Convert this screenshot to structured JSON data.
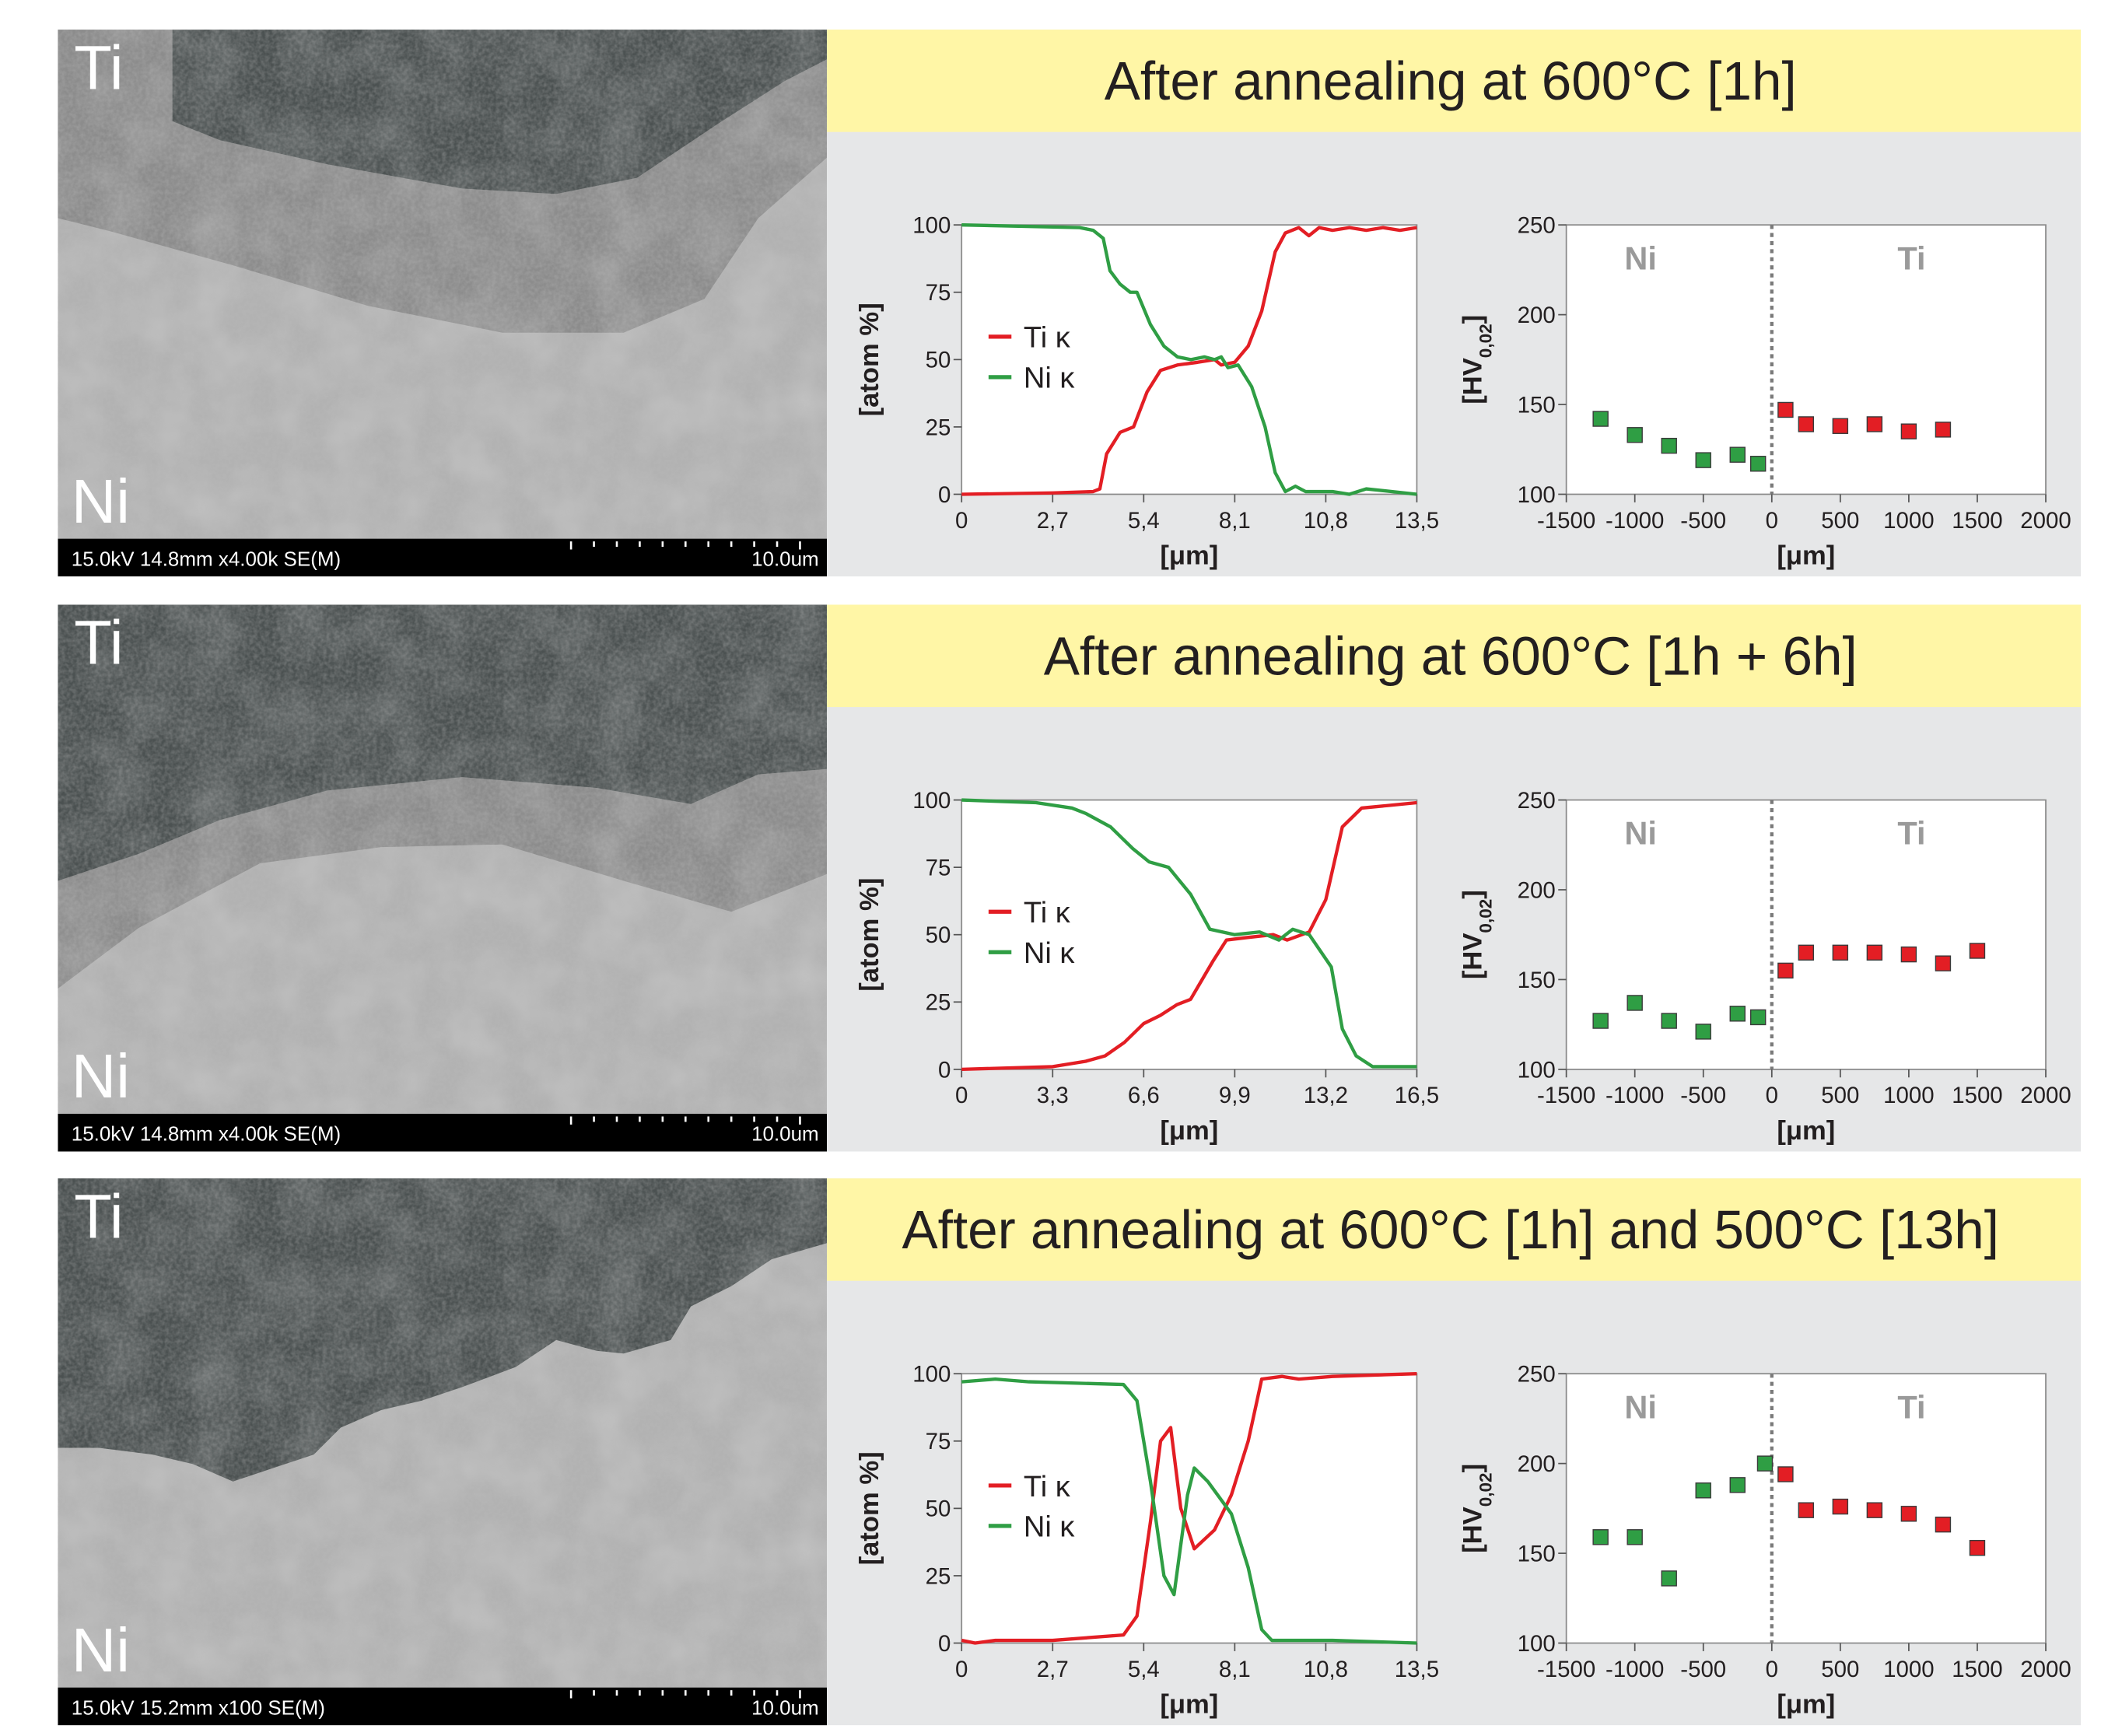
{
  "panels": [
    {
      "title": "After annealing at 600°C [1h]",
      "sem": {
        "top_label": "Ti",
        "bottom_label": "Ni",
        "info": "15.0kV 14.8mm x4.00k SE(M)",
        "scale": "10.0um"
      }
    },
    {
      "title": "After annealing at 600°C [1h + 6h]",
      "sem": {
        "top_label": "Ti",
        "bottom_label": "Ni",
        "info": "15.0kV 14.8mm x4.00k SE(M)",
        "scale": "10.0um"
      }
    },
    {
      "title": "After annealing at 600°C [1h] and 500°C [13h]",
      "sem": {
        "top_label": "Ti",
        "bottom_label": "Ni",
        "info": "15.0kV 15.2mm x100 SE(M)",
        "scale": "10.0um"
      }
    }
  ],
  "chart_data": [
    {
      "type": "line",
      "xlabel": "[μm]",
      "ylabel": "[atom %]",
      "xlim": [
        0,
        13.5
      ],
      "xticks": [
        0,
        {
          "value": 2.7,
          "label": "2,7"
        },
        {
          "value": 5.4,
          "label": "5,4"
        },
        {
          "value": 8.1,
          "label": "8,1"
        },
        {
          "value": 10.8,
          "label": "10,8"
        },
        {
          "value": 13.5,
          "label": "13,5"
        }
      ],
      "ylim": [
        0,
        100
      ],
      "yticks": [
        0,
        25,
        50,
        75,
        100
      ],
      "legend": "left",
      "series": [
        {
          "name": "Ti κ",
          "color": "#e31e24",
          "x": [
            0,
            2.7,
            3.9,
            4.1,
            4.3,
            4.7,
            5.1,
            5.5,
            5.9,
            6.4,
            7,
            7.5,
            7.7,
            8.1,
            8.5,
            8.9,
            9.3,
            9.6,
            10,
            10.3,
            10.6,
            11,
            11.5,
            12,
            12.5,
            13,
            13.5
          ],
          "values": [
            0,
            0.5,
            1,
            2,
            15,
            23,
            25,
            38,
            46,
            48,
            49,
            50,
            48,
            49,
            55,
            68,
            90,
            97,
            99,
            96,
            99,
            98,
            99,
            98,
            99,
            98,
            99
          ]
        },
        {
          "name": "Ni κ",
          "color": "#2f9e44",
          "x": [
            0,
            3.5,
            3.9,
            4.2,
            4.4,
            4.7,
            5,
            5.2,
            5.6,
            6,
            6.4,
            6.8,
            7.2,
            7.5,
            7.7,
            7.9,
            8.2,
            8.6,
            9,
            9.3,
            9.6,
            9.9,
            10.2,
            11,
            11.5,
            12,
            13.5
          ],
          "values": [
            100,
            99,
            98,
            95,
            83,
            78,
            75,
            75,
            63,
            55,
            51,
            50,
            51,
            50,
            51,
            47,
            48,
            40,
            25,
            8,
            1,
            3,
            1,
            1,
            0,
            2,
            0
          ]
        }
      ]
    },
    {
      "type": "scatter",
      "xlabel": "[μm]",
      "ylabel": [
        "[HV",
        "0,02",
        "]"
      ],
      "xlim": [
        -1500,
        2000
      ],
      "xticks": [
        -1500,
        -1000,
        -500,
        0,
        500,
        1000,
        1500,
        2000
      ],
      "ylim": [
        100,
        250
      ],
      "yticks": [
        100,
        150,
        200,
        250
      ],
      "reference_line_x": 0,
      "series": [
        {
          "name": "Ni",
          "color": "#2f9e44",
          "x": [
            -1250,
            -1000,
            -750,
            -500,
            -250,
            -100
          ],
          "values": [
            142,
            133,
            127,
            119,
            122,
            117
          ]
        },
        {
          "name": "Ti",
          "color": "#e31e24",
          "x": [
            100,
            250,
            500,
            750,
            1000,
            1250
          ],
          "values": [
            147,
            139,
            138,
            139,
            135,
            136
          ]
        }
      ]
    },
    {
      "type": "line",
      "xlabel": "[μm]",
      "ylabel": "[atom %]",
      "xlim": [
        0,
        16.5
      ],
      "xticks": [
        0,
        {
          "value": 3.3,
          "label": "3,3"
        },
        {
          "value": 6.6,
          "label": "6,6"
        },
        {
          "value": 9.9,
          "label": "9,9"
        },
        {
          "value": 13.2,
          "label": "13,2"
        },
        {
          "value": 16.5,
          "label": "16,5"
        }
      ],
      "ylim": [
        0,
        100
      ],
      "yticks": [
        0,
        25,
        50,
        75,
        100
      ],
      "legend": "left",
      "series": [
        {
          "name": "Ti κ",
          "color": "#e31e24",
          "x": [
            0,
            3.3,
            4.5,
            5.2,
            5.9,
            6.6,
            7.2,
            7.8,
            8.3,
            9.1,
            9.6,
            10.4,
            11.3,
            11.8,
            12.6,
            13.2,
            13.8,
            14.5,
            15.5,
            16.5
          ],
          "values": [
            0,
            1,
            3,
            5,
            10,
            17,
            20,
            24,
            26,
            40,
            48,
            49,
            50,
            48,
            51,
            63,
            90,
            97,
            98,
            99
          ]
        },
        {
          "name": "Ni κ",
          "color": "#2f9e44",
          "x": [
            0,
            2.7,
            4,
            4.5,
            5.4,
            6.2,
            6.8,
            7.5,
            8.3,
            9,
            9.9,
            10.8,
            11.5,
            12,
            12.6,
            13.4,
            13.8,
            14.3,
            14.9,
            16.5
          ],
          "values": [
            100,
            99,
            97,
            95,
            90,
            82,
            77,
            75,
            65,
            52,
            50,
            51,
            48,
            52,
            50,
            38,
            15,
            5,
            1,
            1
          ]
        }
      ]
    },
    {
      "type": "scatter",
      "xlabel": "[μm]",
      "ylabel": [
        "[HV",
        "0,02",
        "]"
      ],
      "xlim": [
        -1500,
        2000
      ],
      "xticks": [
        -1500,
        -1000,
        -500,
        0,
        500,
        1000,
        1500,
        2000
      ],
      "ylim": [
        100,
        250
      ],
      "yticks": [
        100,
        150,
        200,
        250
      ],
      "reference_line_x": 0,
      "series": [
        {
          "name": "Ni",
          "color": "#2f9e44",
          "x": [
            -1250,
            -1000,
            -750,
            -500,
            -250,
            -100
          ],
          "values": [
            127,
            137,
            127,
            121,
            131,
            129
          ]
        },
        {
          "name": "Ti",
          "color": "#e31e24",
          "x": [
            100,
            250,
            500,
            750,
            1000,
            1250,
            1500
          ],
          "values": [
            155,
            165,
            165,
            165,
            164,
            159,
            166
          ]
        }
      ]
    },
    {
      "type": "line",
      "xlabel": "[μm]",
      "ylabel": "[atom %]",
      "xlim": [
        0,
        13.5
      ],
      "xticks": [
        0,
        {
          "value": 2.7,
          "label": "2,7"
        },
        {
          "value": 5.4,
          "label": "5,4"
        },
        {
          "value": 8.1,
          "label": "8,1"
        },
        {
          "value": 10.8,
          "label": "10,8"
        },
        {
          "value": 13.5,
          "label": "13,5"
        }
      ],
      "ylim": [
        0,
        100
      ],
      "yticks": [
        0,
        25,
        50,
        75,
        100
      ],
      "legend": "left",
      "series": [
        {
          "name": "Ti κ",
          "color": "#e31e24",
          "x": [
            0,
            0.4,
            1,
            2.7,
            4.8,
            5.2,
            5.6,
            5.9,
            6.2,
            6.5,
            6.9,
            7.5,
            8,
            8.5,
            8.9,
            9.5,
            10,
            11,
            13.5
          ],
          "values": [
            1,
            0,
            1,
            1,
            3,
            10,
            45,
            75,
            80,
            50,
            35,
            42,
            55,
            75,
            98,
            99,
            98,
            99,
            100
          ]
        },
        {
          "name": "Ni κ",
          "color": "#2f9e44",
          "x": [
            0,
            1,
            2,
            4.8,
            5.2,
            5.6,
            6,
            6.3,
            6.7,
            6.9,
            7.3,
            8,
            8.5,
            8.9,
            9.2,
            10,
            11,
            13.5
          ],
          "values": [
            97,
            98,
            97,
            96,
            90,
            60,
            25,
            18,
            55,
            65,
            60,
            48,
            28,
            5,
            1,
            1,
            1,
            0
          ]
        }
      ]
    },
    {
      "type": "scatter",
      "xlabel": "[μm]",
      "ylabel": [
        "[HV",
        "0,02",
        "]"
      ],
      "xlim": [
        -1500,
        2000
      ],
      "xticks": [
        -1500,
        -1000,
        -500,
        0,
        500,
        1000,
        1500,
        2000
      ],
      "ylim": [
        100,
        250
      ],
      "yticks": [
        100,
        150,
        200,
        250
      ],
      "reference_line_x": 0,
      "series": [
        {
          "name": "Ni",
          "color": "#2f9e44",
          "x": [
            -1250,
            -1000,
            -750,
            -500,
            -250,
            -50
          ],
          "values": [
            159,
            159,
            136,
            185,
            188,
            200
          ]
        },
        {
          "name": "Ti",
          "color": "#e31e24",
          "x": [
            100,
            250,
            500,
            750,
            1000,
            1250,
            1500
          ],
          "values": [
            194,
            174,
            176,
            174,
            172,
            166,
            153
          ]
        }
      ]
    }
  ]
}
